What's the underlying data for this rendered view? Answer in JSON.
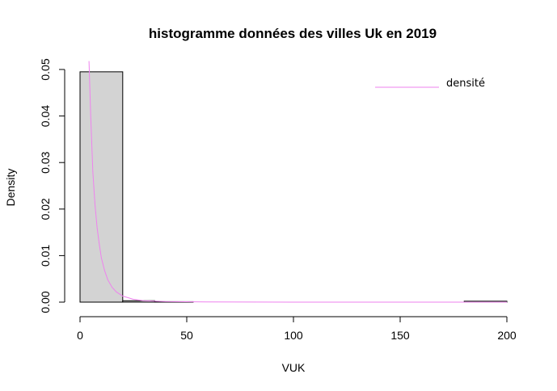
{
  "chart_data": {
    "type": "bar",
    "title": "histogramme données des villes Uk en 2019",
    "xlabel": "VUK",
    "ylabel": "Density",
    "xlim": [
      0,
      200
    ],
    "ylim": [
      0,
      0.05
    ],
    "x_ticks": [
      0,
      50,
      100,
      150,
      200
    ],
    "x_tick_labels": [
      "0",
      "50",
      "100",
      "150",
      "200"
    ],
    "y_ticks": [
      0,
      0.01,
      0.02,
      0.03,
      0.04,
      0.05
    ],
    "y_tick_labels": [
      "0.00",
      "0.01",
      "0.02",
      "0.03",
      "0.04",
      "0.05"
    ],
    "bins": [
      {
        "x0": 0,
        "x1": 20,
        "density": 0.0495
      },
      {
        "x0": 20,
        "x1": 35,
        "density": 0.0003
      },
      {
        "x0": 35,
        "x1": 53,
        "density": 0.0001
      },
      {
        "x0": 53,
        "x1": 180,
        "density": 0.0
      },
      {
        "x0": 180,
        "x1": 200,
        "density": 0.0002
      }
    ],
    "bar_color": "#d3d3d3",
    "bar_border_color": "#000000",
    "density_curve": {
      "name": "densité",
      "color": "#ee82ee",
      "points": [
        [
          4.2,
          0.0518
        ],
        [
          4.6,
          0.046
        ],
        [
          5,
          0.04
        ],
        [
          5.5,
          0.034
        ],
        [
          6,
          0.028
        ],
        [
          7,
          0.021
        ],
        [
          8,
          0.016
        ],
        [
          9,
          0.0125
        ],
        [
          10,
          0.0095
        ],
        [
          11.5,
          0.0068
        ],
        [
          13,
          0.0048
        ],
        [
          15,
          0.0032
        ],
        [
          17,
          0.0022
        ],
        [
          20,
          0.0013
        ],
        [
          25,
          0.0006
        ],
        [
          30,
          0.0003
        ],
        [
          40,
          0.00012
        ],
        [
          60,
          4e-05
        ],
        [
          100,
          1e-05
        ],
        [
          150,
          0.0
        ],
        [
          200,
          0.0
        ]
      ]
    },
    "grid": false,
    "legend": {
      "position": "top-right",
      "entries": [
        "densité"
      ]
    }
  }
}
